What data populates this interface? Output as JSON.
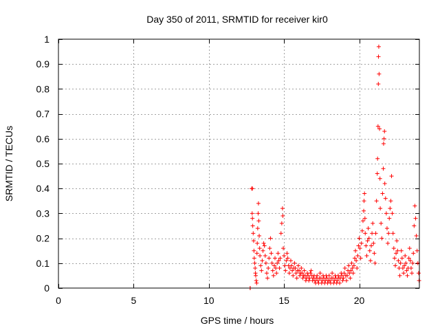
{
  "chart_data": {
    "type": "scatter",
    "title": "Day 350 of 2011, SRMTID for receiver kir0",
    "xlabel": "GPS time / hours",
    "ylabel": "SRMTID / TECUs",
    "xlim": [
      0,
      24
    ],
    "ylim": [
      0,
      1
    ],
    "xticks": [
      0,
      5,
      10,
      15,
      20
    ],
    "yticks": [
      0,
      0.1,
      0.2,
      0.3,
      0.4,
      0.5,
      0.6,
      0.7,
      0.8,
      0.9,
      1
    ],
    "xtick_labels": [
      "0",
      "5",
      "10",
      "15",
      "20"
    ],
    "ytick_labels": [
      "0",
      "0.1",
      "0.2",
      "0.3",
      "0.4",
      "0.5",
      "0.6",
      "0.7",
      "0.8",
      "0.9",
      "1"
    ],
    "grid": true,
    "marker": "+",
    "color": "#ff0000",
    "series": [
      {
        "name": "SRMTID",
        "points": [
          [
            12.75,
            0.0
          ],
          [
            12.75,
            0.0
          ],
          [
            12.85,
            0.4
          ],
          [
            12.9,
            0.4
          ],
          [
            12.88,
            0.3
          ],
          [
            12.9,
            0.28
          ],
          [
            12.92,
            0.25
          ],
          [
            12.95,
            0.22
          ],
          [
            12.98,
            0.19
          ],
          [
            13.0,
            0.15
          ],
          [
            13.02,
            0.12
          ],
          [
            13.05,
            0.1
          ],
          [
            13.08,
            0.08
          ],
          [
            13.1,
            0.06
          ],
          [
            13.12,
            0.05
          ],
          [
            13.15,
            0.03
          ],
          [
            13.18,
            0.02
          ],
          [
            13.2,
            0.14
          ],
          [
            13.22,
            0.18
          ],
          [
            13.25,
            0.24
          ],
          [
            13.28,
            0.3
          ],
          [
            13.3,
            0.34
          ],
          [
            13.32,
            0.27
          ],
          [
            13.35,
            0.21
          ],
          [
            13.38,
            0.16
          ],
          [
            13.4,
            0.13
          ],
          [
            13.45,
            0.09
          ],
          [
            13.5,
            0.07
          ],
          [
            13.55,
            0.11
          ],
          [
            13.6,
            0.15
          ],
          [
            13.65,
            0.18
          ],
          [
            13.7,
            0.17
          ],
          [
            13.75,
            0.13
          ],
          [
            13.8,
            0.1
          ],
          [
            13.85,
            0.06
          ],
          [
            13.9,
            0.04
          ],
          [
            13.95,
            0.08
          ],
          [
            14.0,
            0.12
          ],
          [
            14.05,
            0.16
          ],
          [
            14.1,
            0.2
          ],
          [
            14.15,
            0.14
          ],
          [
            14.2,
            0.1
          ],
          [
            14.25,
            0.07
          ],
          [
            14.3,
            0.05
          ],
          [
            14.35,
            0.09
          ],
          [
            14.4,
            0.12
          ],
          [
            14.45,
            0.08
          ],
          [
            14.5,
            0.06
          ],
          [
            14.55,
            0.1
          ],
          [
            14.6,
            0.14
          ],
          [
            14.65,
            0.11
          ],
          [
            14.7,
            0.08
          ],
          [
            14.75,
            0.12
          ],
          [
            14.8,
            0.22
          ],
          [
            14.85,
            0.26
          ],
          [
            14.9,
            0.32
          ],
          [
            14.92,
            0.29
          ],
          [
            14.95,
            0.16
          ],
          [
            15.0,
            0.13
          ],
          [
            15.05,
            0.09
          ],
          [
            15.1,
            0.07
          ],
          [
            15.15,
            0.11
          ],
          [
            15.2,
            0.14
          ],
          [
            15.25,
            0.12
          ],
          [
            15.3,
            0.09
          ],
          [
            15.35,
            0.06
          ],
          [
            15.4,
            0.08
          ],
          [
            15.45,
            0.11
          ],
          [
            15.5,
            0.09
          ],
          [
            15.55,
            0.07
          ],
          [
            15.6,
            0.05
          ],
          [
            15.65,
            0.08
          ],
          [
            15.7,
            0.1
          ],
          [
            15.75,
            0.08
          ],
          [
            15.8,
            0.06
          ],
          [
            15.85,
            0.04
          ],
          [
            15.9,
            0.07
          ],
          [
            15.95,
            0.09
          ],
          [
            16.0,
            0.07
          ],
          [
            16.05,
            0.05
          ],
          [
            16.1,
            0.06
          ],
          [
            16.15,
            0.08
          ],
          [
            16.2,
            0.06
          ],
          [
            16.25,
            0.04
          ],
          [
            16.3,
            0.05
          ],
          [
            16.35,
            0.07
          ],
          [
            16.4,
            0.05
          ],
          [
            16.45,
            0.03
          ],
          [
            16.5,
            0.04
          ],
          [
            16.55,
            0.06
          ],
          [
            16.6,
            0.05
          ],
          [
            16.65,
            0.03
          ],
          [
            16.7,
            0.04
          ],
          [
            16.75,
            0.06
          ],
          [
            16.8,
            0.07
          ],
          [
            16.85,
            0.05
          ],
          [
            16.9,
            0.03
          ],
          [
            16.95,
            0.04
          ],
          [
            17.0,
            0.05
          ],
          [
            17.05,
            0.03
          ],
          [
            17.1,
            0.02
          ],
          [
            17.15,
            0.04
          ],
          [
            17.2,
            0.05
          ],
          [
            17.25,
            0.03
          ],
          [
            17.3,
            0.02
          ],
          [
            17.35,
            0.04
          ],
          [
            17.4,
            0.06
          ],
          [
            17.45,
            0.04
          ],
          [
            17.5,
            0.02
          ],
          [
            17.55,
            0.03
          ],
          [
            17.6,
            0.05
          ],
          [
            17.65,
            0.04
          ],
          [
            17.7,
            0.02
          ],
          [
            17.75,
            0.03
          ],
          [
            17.8,
            0.05
          ],
          [
            17.85,
            0.04
          ],
          [
            17.9,
            0.02
          ],
          [
            17.95,
            0.03
          ],
          [
            18.0,
            0.05
          ],
          [
            18.05,
            0.03
          ],
          [
            18.1,
            0.02
          ],
          [
            18.15,
            0.04
          ],
          [
            18.2,
            0.06
          ],
          [
            18.25,
            0.04
          ],
          [
            18.3,
            0.02
          ],
          [
            18.35,
            0.03
          ],
          [
            18.4,
            0.05
          ],
          [
            18.45,
            0.04
          ],
          [
            18.5,
            0.02
          ],
          [
            18.55,
            0.03
          ],
          [
            18.6,
            0.05
          ],
          [
            18.65,
            0.04
          ],
          [
            18.7,
            0.02
          ],
          [
            18.75,
            0.04
          ],
          [
            18.8,
            0.06
          ],
          [
            18.85,
            0.05
          ],
          [
            18.9,
            0.03
          ],
          [
            18.95,
            0.04
          ],
          [
            19.0,
            0.06
          ],
          [
            19.05,
            0.08
          ],
          [
            19.1,
            0.05
          ],
          [
            19.15,
            0.03
          ],
          [
            19.2,
            0.05
          ],
          [
            19.25,
            0.07
          ],
          [
            19.3,
            0.09
          ],
          [
            19.35,
            0.06
          ],
          [
            19.4,
            0.04
          ],
          [
            19.45,
            0.07
          ],
          [
            19.5,
            0.1
          ],
          [
            19.55,
            0.08
          ],
          [
            19.6,
            0.06
          ],
          [
            19.65,
            0.09
          ],
          [
            19.7,
            0.12
          ],
          [
            19.75,
            0.15
          ],
          [
            19.8,
            0.11
          ],
          [
            19.85,
            0.08
          ],
          [
            19.9,
            0.13
          ],
          [
            19.95,
            0.17
          ],
          [
            20.0,
            0.2
          ],
          [
            20.05,
            0.16
          ],
          [
            20.1,
            0.12
          ],
          [
            20.15,
            0.18
          ],
          [
            20.2,
            0.23
          ],
          [
            20.25,
            0.27
          ],
          [
            20.3,
            0.31
          ],
          [
            20.32,
            0.35
          ],
          [
            20.35,
            0.38
          ],
          [
            20.38,
            0.28
          ],
          [
            20.4,
            0.22
          ],
          [
            20.45,
            0.17
          ],
          [
            20.5,
            0.13
          ],
          [
            20.55,
            0.19
          ],
          [
            20.6,
            0.24
          ],
          [
            20.65,
            0.2
          ],
          [
            20.7,
            0.15
          ],
          [
            20.75,
            0.11
          ],
          [
            20.8,
            0.17
          ],
          [
            20.85,
            0.22
          ],
          [
            20.9,
            0.26
          ],
          [
            20.95,
            0.18
          ],
          [
            21.0,
            0.14
          ],
          [
            21.05,
            0.1
          ],
          [
            21.1,
            0.22
          ],
          [
            21.15,
            0.35
          ],
          [
            21.2,
            0.46
          ],
          [
            21.22,
            0.52
          ],
          [
            21.25,
            0.65
          ],
          [
            21.27,
            0.82
          ],
          [
            21.28,
            0.93
          ],
          [
            21.3,
            0.97
          ],
          [
            21.32,
            0.86
          ],
          [
            21.35,
            0.64
          ],
          [
            21.38,
            0.44
          ],
          [
            21.4,
            0.32
          ],
          [
            21.45,
            0.26
          ],
          [
            21.5,
            0.2
          ],
          [
            21.55,
            0.38
          ],
          [
            21.6,
            0.48
          ],
          [
            21.62,
            0.58
          ],
          [
            21.65,
            0.6
          ],
          [
            21.68,
            0.63
          ],
          [
            21.7,
            0.42
          ],
          [
            21.75,
            0.36
          ],
          [
            21.8,
            0.3
          ],
          [
            21.85,
            0.24
          ],
          [
            21.9,
            0.18
          ],
          [
            21.95,
            0.22
          ],
          [
            22.0,
            0.28
          ],
          [
            22.05,
            0.32
          ],
          [
            22.1,
            0.35
          ],
          [
            22.15,
            0.45
          ],
          [
            22.2,
            0.3
          ],
          [
            22.25,
            0.22
          ],
          [
            22.3,
            0.16
          ],
          [
            22.35,
            0.12
          ],
          [
            22.4,
            0.09
          ],
          [
            22.45,
            0.14
          ],
          [
            22.5,
            0.19
          ],
          [
            22.55,
            0.15
          ],
          [
            22.6,
            0.11
          ],
          [
            22.65,
            0.08
          ],
          [
            22.7,
            0.05
          ],
          [
            22.75,
            0.1
          ],
          [
            22.8,
            0.15
          ],
          [
            22.85,
            0.12
          ],
          [
            22.9,
            0.08
          ],
          [
            22.95,
            0.06
          ],
          [
            23.0,
            0.09
          ],
          [
            23.05,
            0.13
          ],
          [
            23.1,
            0.1
          ],
          [
            23.15,
            0.07
          ],
          [
            23.2,
            0.05
          ],
          [
            23.25,
            0.08
          ],
          [
            23.3,
            0.12
          ],
          [
            23.35,
            0.16
          ],
          [
            23.4,
            0.11
          ],
          [
            23.45,
            0.08
          ],
          [
            23.5,
            0.06
          ],
          [
            23.55,
            0.1
          ],
          [
            23.6,
            0.14
          ],
          [
            23.65,
            0.25
          ],
          [
            23.7,
            0.33
          ],
          [
            23.75,
            0.28
          ],
          [
            23.8,
            0.21
          ],
          [
            23.85,
            0.15
          ],
          [
            23.9,
            0.1
          ],
          [
            23.95,
            0.06
          ],
          [
            23.98,
            0.03
          ]
        ]
      }
    ]
  }
}
